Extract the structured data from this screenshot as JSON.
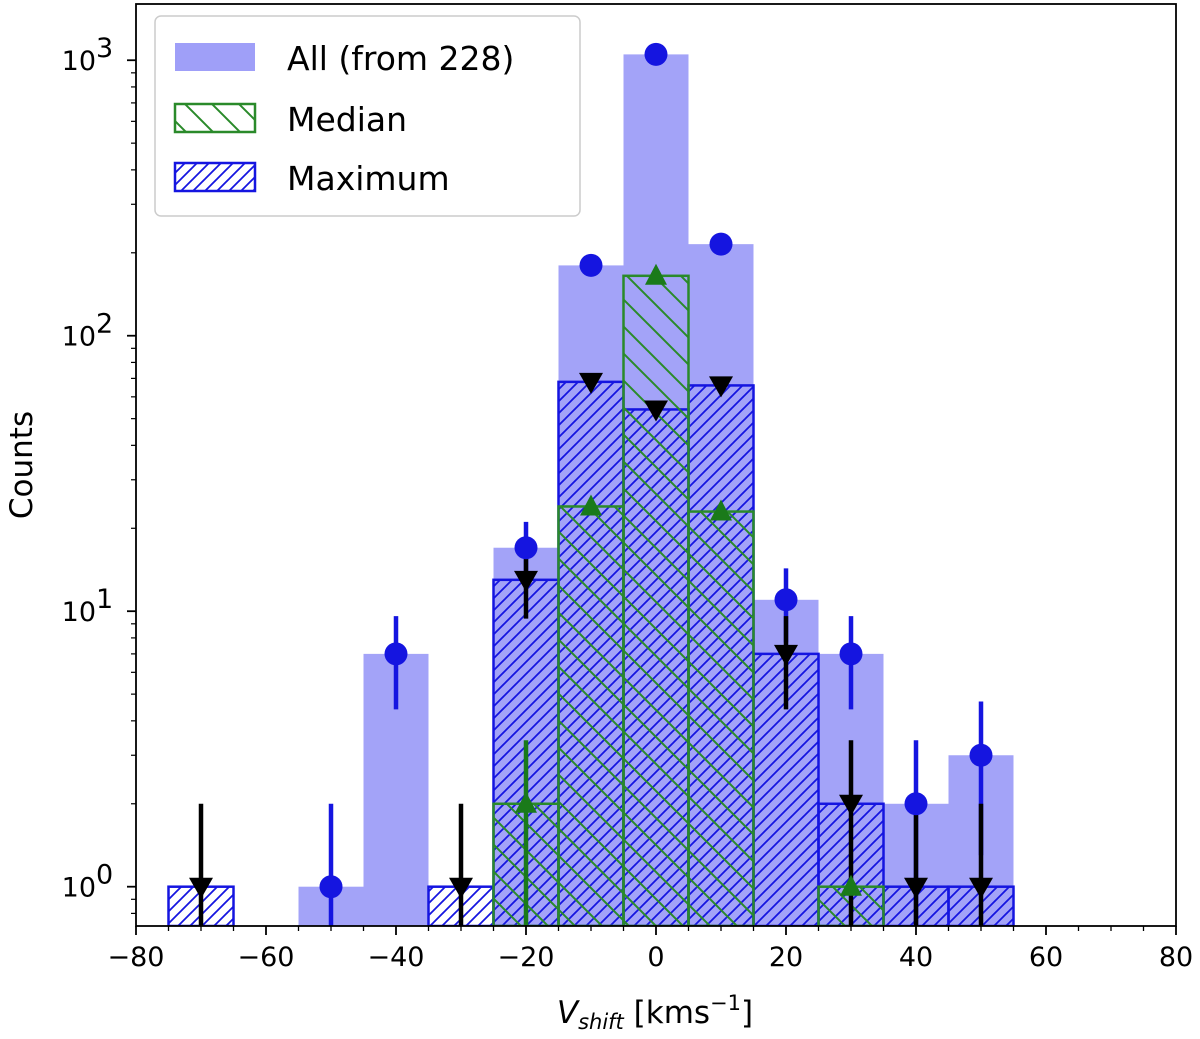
{
  "chart_data": {
    "type": "bar",
    "xlabel_main": "V",
    "xlabel_sub": "shift",
    "xlabel_unit": " [kms",
    "xlabel_exp": "−1",
    "xlabel_close": "]",
    "ylabel": "Counts",
    "yscale": "log",
    "xlim": [
      -80,
      80
    ],
    "ylim": [
      0.72,
      1600
    ],
    "bin_width": 10,
    "xticks": [
      {
        "value": -80,
        "label": "−80"
      },
      {
        "value": -60,
        "label": "−60"
      },
      {
        "value": -40,
        "label": "−40"
      },
      {
        "value": -20,
        "label": "−20"
      },
      {
        "value": 0,
        "label": "0"
      },
      {
        "value": 20,
        "label": "20"
      },
      {
        "value": 40,
        "label": "40"
      },
      {
        "value": 60,
        "label": "60"
      },
      {
        "value": 80,
        "label": "80"
      }
    ],
    "yticks": [
      {
        "value": 1,
        "base": "10",
        "exp": "0"
      },
      {
        "value": 10,
        "base": "10",
        "exp": "1"
      },
      {
        "value": 100,
        "base": "10",
        "exp": "2"
      },
      {
        "value": 1000,
        "base": "10",
        "exp": "3"
      }
    ],
    "legend": [
      {
        "label": "All (from 228)",
        "style": "filled",
        "color": "#9f9ff8"
      },
      {
        "label": "Median",
        "style": "hatch-backslash",
        "color": "#2a8a2a"
      },
      {
        "label": "Maximum",
        "style": "hatch-slash",
        "color": "#1515e0"
      }
    ],
    "series": [
      {
        "name": "All (from 228)",
        "color": "#9f9ff8",
        "marker": "circle",
        "marker_color": "#1515e0",
        "x": [
          -50,
          -40,
          0,
          -20,
          -10,
          10,
          20,
          30,
          40,
          50
        ],
        "values": [
          1,
          7,
          1050,
          17,
          180,
          215,
          11,
          7,
          2,
          3
        ],
        "errors": [
          [
            -50,
            0,
            2
          ],
          [
            -40,
            4.4,
            9.6
          ],
          [
            -20,
            12.9,
            21.1
          ],
          [
            20,
            7.7,
            14.3
          ],
          [
            30,
            4.4,
            9.6
          ],
          [
            40,
            0,
            3.4
          ],
          [
            50,
            1.3,
            4.7
          ]
        ]
      },
      {
        "name": "Median",
        "color": "#2a8a2a",
        "marker": "triangle-up",
        "marker_color": "#1a7a1a",
        "x": [
          -20,
          -10,
          0,
          10,
          30
        ],
        "values": [
          2,
          24,
          165,
          23,
          1
        ],
        "errors": [
          [
            -20,
            0,
            3.4
          ]
        ]
      },
      {
        "name": "Maximum",
        "color": "#1515e0",
        "marker": "triangle-down",
        "marker_color": "#000000",
        "x": [
          -70,
          -30,
          -20,
          -10,
          0,
          10,
          20,
          30,
          40,
          50
        ],
        "values": [
          1,
          1,
          13,
          68,
          54,
          66,
          7,
          2,
          1,
          1
        ],
        "errors": [
          [
            -70,
            0,
            2
          ],
          [
            -30,
            0,
            2
          ],
          [
            -20,
            9.4,
            16.6
          ],
          [
            20,
            4.4,
            9.6
          ],
          [
            30,
            0,
            3.4
          ],
          [
            40,
            0,
            2
          ],
          [
            50,
            0,
            2
          ]
        ]
      }
    ]
  }
}
